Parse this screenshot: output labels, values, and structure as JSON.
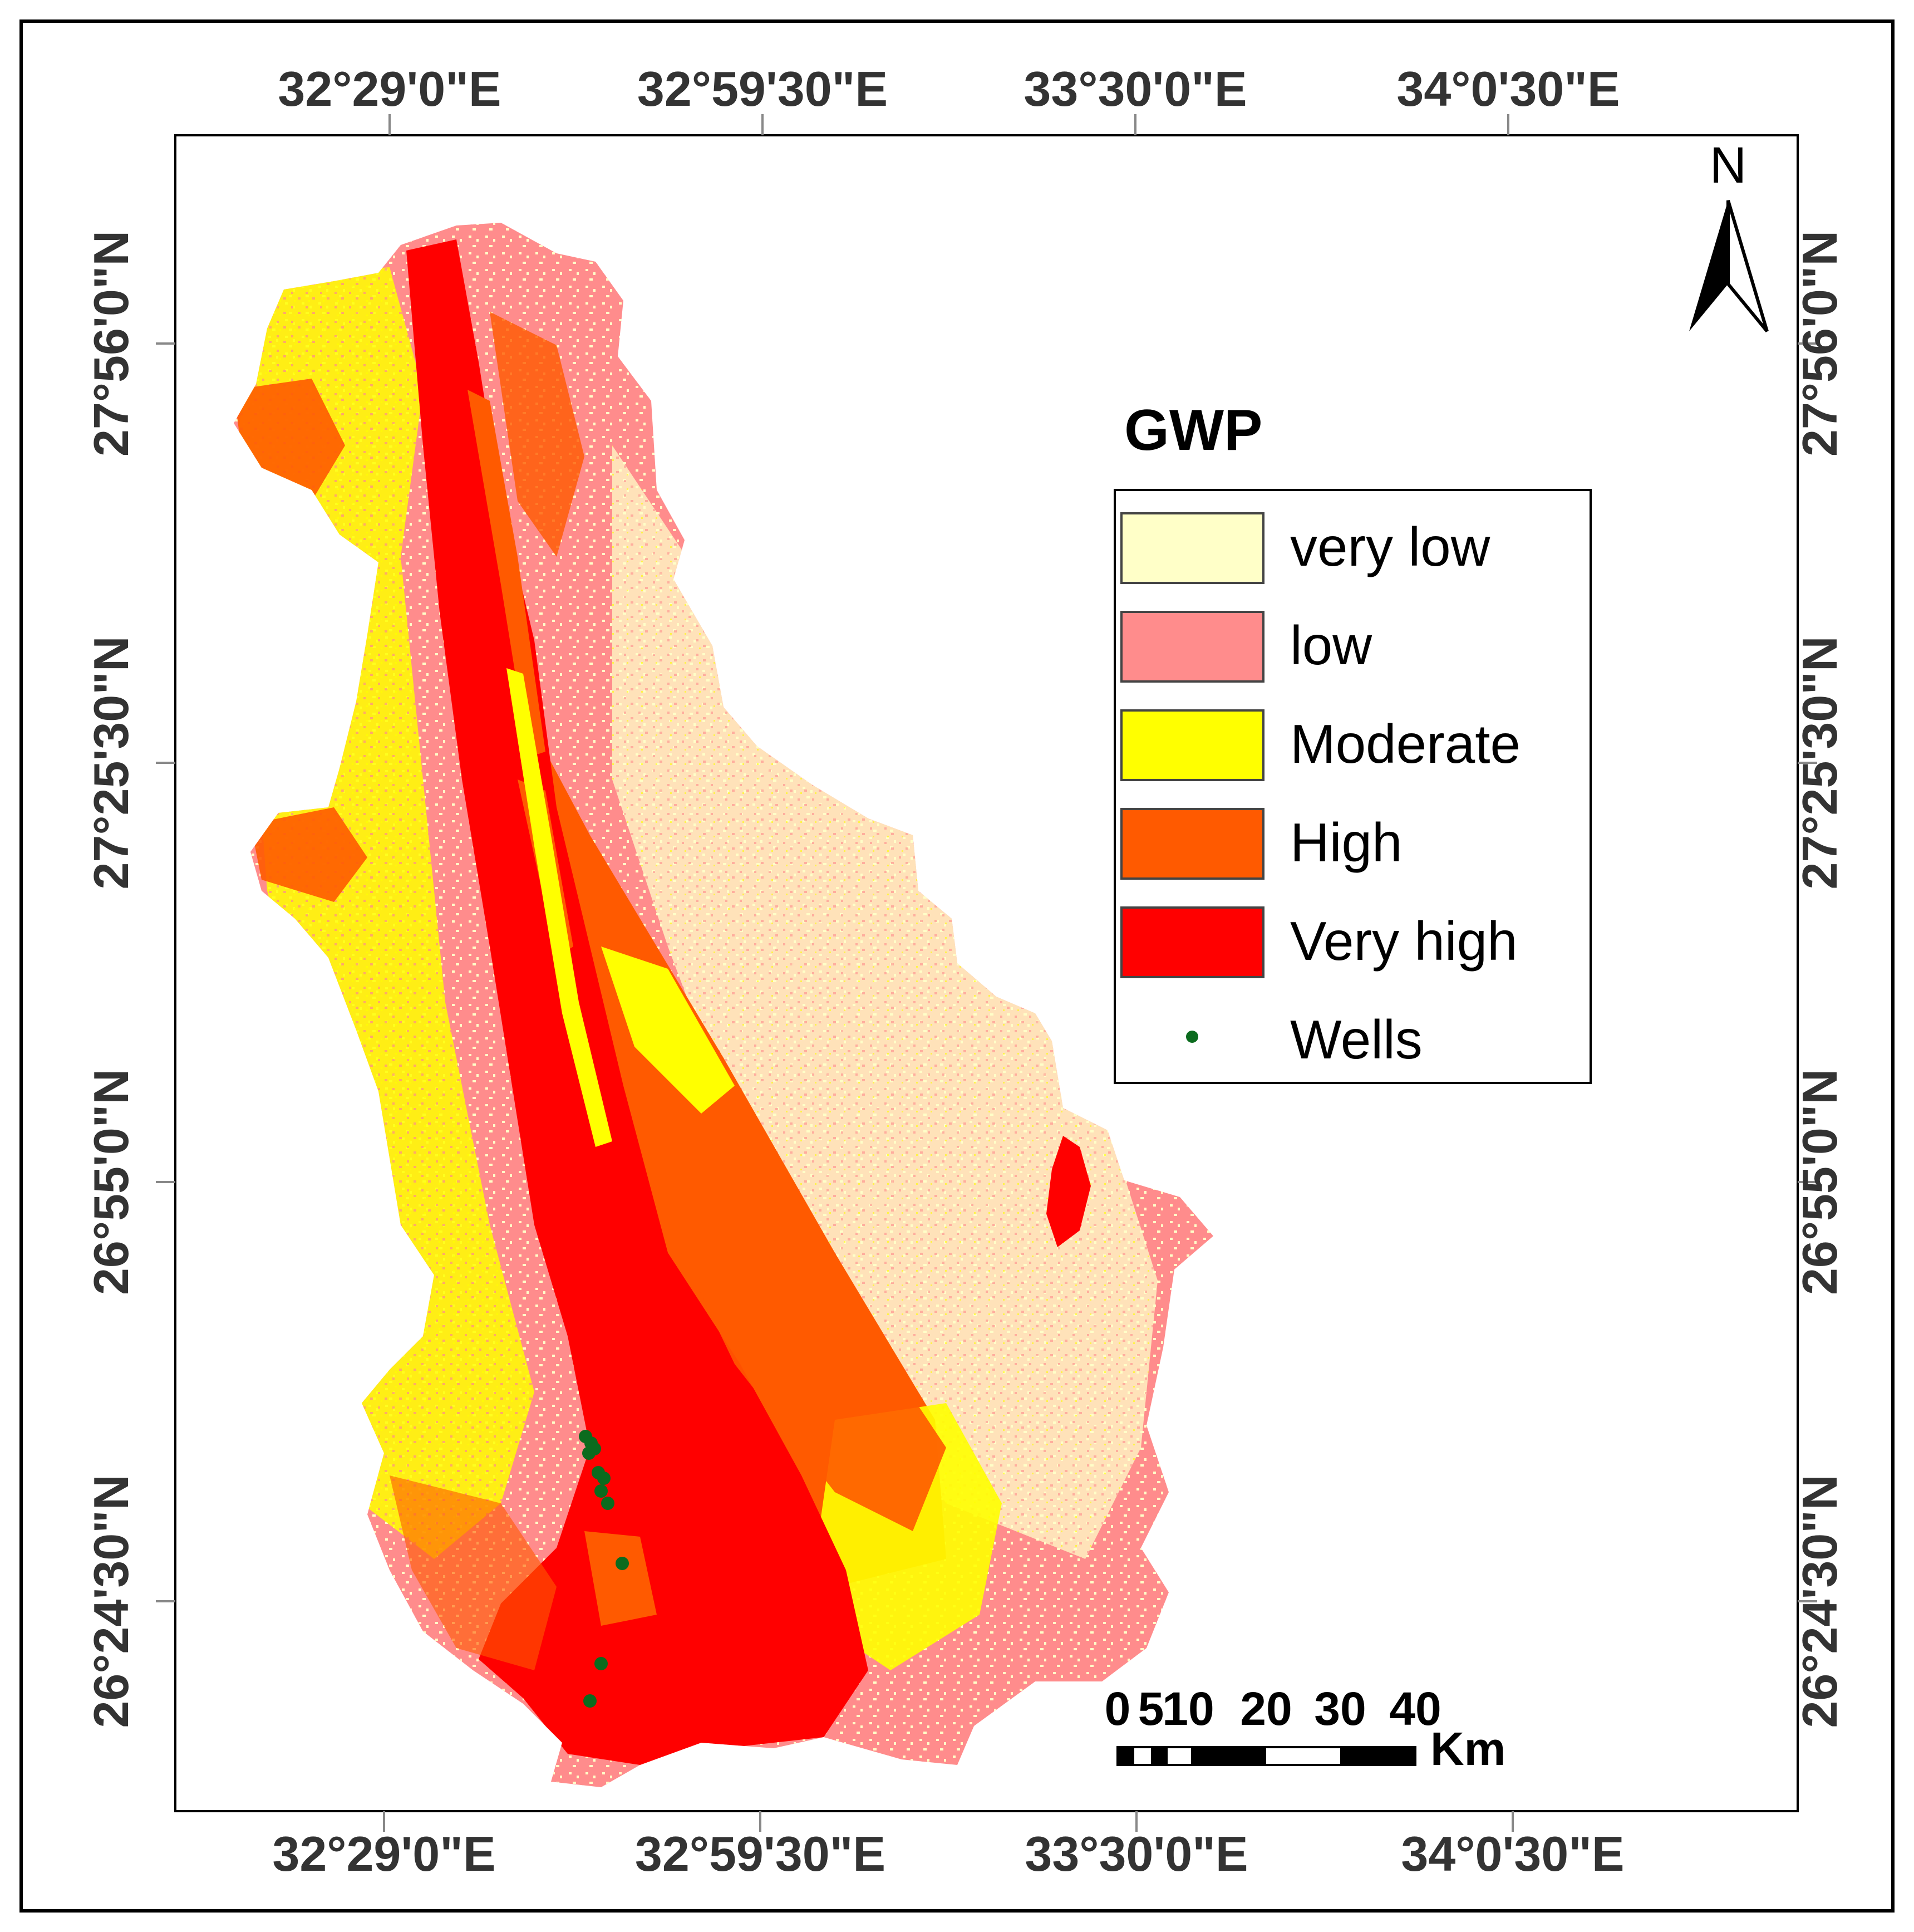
{
  "map": {
    "legend": {
      "title": "GWP",
      "classes": [
        {
          "label": "very low",
          "color": "#FFFFC8"
        },
        {
          "label": "low",
          "color": "#FF8C8C"
        },
        {
          "label": "Moderate",
          "color": "#FFFF00"
        },
        {
          "label": "High",
          "color": "#FF5A00"
        },
        {
          "label": "Very high",
          "color": "#FF0000"
        }
      ],
      "wells": {
        "label": "Wells",
        "color": "#0B6B1E"
      }
    },
    "north_arrow": {
      "label": "N"
    },
    "scale_bar": {
      "unit": "Km",
      "labels": [
        "0",
        "5",
        "10",
        "20",
        "30",
        "40"
      ]
    },
    "graticule": {
      "top": [
        "32°29'0\"E",
        "32°59'30\"E",
        "33°30'0\"E",
        "34°0'30\"E"
      ],
      "bottom": [
        "32°29'0\"E",
        "32°59'30\"E",
        "33°30'0\"E",
        "34°0'30\"E"
      ],
      "left": [
        "27°56'0\"N",
        "27°25'30\"N",
        "26°55'0\"N",
        "26°24'30\"N"
      ],
      "right": [
        "27°56'0\"N",
        "27°25'30\"N",
        "26°55'0\"N",
        "26°24'30\"N"
      ]
    }
  }
}
